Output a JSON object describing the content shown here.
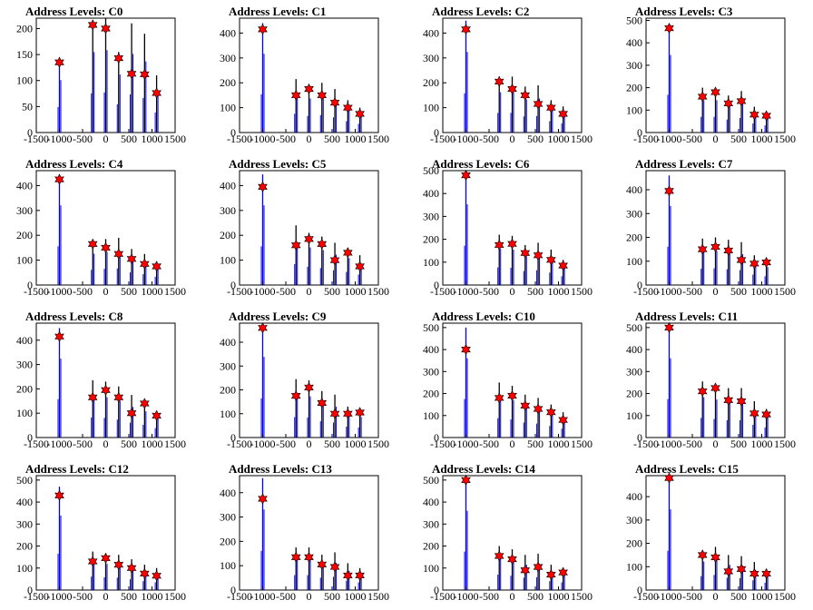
{
  "colors": {
    "background": "#ffffff",
    "frame": "#000000",
    "histogram_blue": "#0000ff",
    "histogram_black": "#000000",
    "marker_fill": "#ff0000",
    "marker_stroke": "#000000"
  },
  "layout": {
    "rows": 4,
    "cols": 4
  },
  "chart_data": [
    {
      "type": "bar",
      "title": "Address Levels: C0",
      "xlim": [
        -1500,
        1500
      ],
      "ylim": [
        0,
        220
      ],
      "xticks": [
        -1500,
        -1000,
        -500,
        0,
        500,
        1000,
        1500
      ],
      "yticks": [
        0,
        50,
        100,
        150,
        200
      ],
      "peak_x": [
        -1000,
        -280,
        0,
        280,
        560,
        840,
        1100
      ],
      "bar_heights": [
        140,
        215,
        220,
        155,
        210,
        190,
        110
      ],
      "marker_values": [
        135,
        207,
        200,
        143,
        113,
        112,
        76
      ]
    },
    {
      "type": "bar",
      "title": "Address Levels: C1",
      "xlim": [
        -1500,
        1500
      ],
      "ylim": [
        0,
        460
      ],
      "xticks": [
        -1500,
        -1000,
        -500,
        0,
        500,
        1000,
        1500
      ],
      "yticks": [
        0,
        100,
        200,
        300,
        400
      ],
      "peak_x": [
        -1000,
        -280,
        0,
        280,
        560,
        840,
        1100
      ],
      "bar_heights": [
        440,
        215,
        190,
        200,
        175,
        130,
        100
      ],
      "marker_values": [
        415,
        150,
        175,
        150,
        120,
        100,
        75
      ]
    },
    {
      "type": "bar",
      "title": "Address Levels: C2",
      "xlim": [
        -1500,
        1500
      ],
      "ylim": [
        0,
        460
      ],
      "xticks": [
        -1500,
        -1000,
        -500,
        0,
        500,
        1000,
        1500
      ],
      "yticks": [
        0,
        100,
        200,
        300,
        400
      ],
      "peak_x": [
        -1000,
        -280,
        0,
        280,
        560,
        840,
        1100
      ],
      "bar_heights": [
        450,
        225,
        225,
        185,
        190,
        130,
        105
      ],
      "marker_values": [
        415,
        205,
        175,
        150,
        115,
        100,
        75
      ]
    },
    {
      "type": "bar",
      "title": "Address Levels: C3",
      "xlim": [
        -1500,
        1500
      ],
      "ylim": [
        0,
        510
      ],
      "xticks": [
        -1500,
        -1000,
        -500,
        0,
        500,
        1000,
        1500
      ],
      "yticks": [
        0,
        100,
        200,
        300,
        400,
        500
      ],
      "peak_x": [
        -1000,
        -280,
        0,
        280,
        560,
        840,
        1100
      ],
      "bar_heights": [
        480,
        200,
        200,
        165,
        185,
        115,
        90
      ],
      "marker_values": [
        465,
        160,
        180,
        130,
        140,
        80,
        75
      ]
    },
    {
      "type": "bar",
      "title": "Address Levels: C4",
      "xlim": [
        -1500,
        1500
      ],
      "ylim": [
        0,
        460
      ],
      "xticks": [
        -1500,
        -1000,
        -500,
        0,
        500,
        1000,
        1500
      ],
      "yticks": [
        0,
        100,
        200,
        300,
        400
      ],
      "peak_x": [
        -1000,
        -280,
        0,
        280,
        560,
        840,
        1100
      ],
      "bar_heights": [
        445,
        175,
        185,
        190,
        145,
        125,
        95
      ],
      "marker_values": [
        425,
        165,
        150,
        125,
        105,
        85,
        75
      ]
    },
    {
      "type": "bar",
      "title": "Address Levels: C5",
      "xlim": [
        -1500,
        1500
      ],
      "ylim": [
        0,
        460
      ],
      "xticks": [
        -1500,
        -1000,
        -500,
        0,
        500,
        1000,
        1500
      ],
      "yticks": [
        0,
        100,
        200,
        300,
        400
      ],
      "peak_x": [
        -1000,
        -280,
        0,
        280,
        560,
        840,
        1100
      ],
      "bar_heights": [
        445,
        240,
        210,
        195,
        170,
        150,
        120
      ],
      "marker_values": [
        395,
        160,
        185,
        165,
        100,
        130,
        75
      ]
    },
    {
      "type": "bar",
      "title": "Address Levels: C6",
      "xlim": [
        -1500,
        1500
      ],
      "ylim": [
        0,
        500
      ],
      "xticks": [
        -1500,
        -1000,
        -500,
        0,
        500,
        1000,
        1500
      ],
      "yticks": [
        0,
        100,
        200,
        300,
        400,
        500
      ],
      "peak_x": [
        -1000,
        -280,
        0,
        280,
        560,
        840,
        1100
      ],
      "bar_heights": [
        490,
        220,
        215,
        175,
        185,
        155,
        110
      ],
      "marker_values": [
        480,
        175,
        180,
        140,
        130,
        110,
        85
      ]
    },
    {
      "type": "bar",
      "title": "Address Levels: C7",
      "xlim": [
        -1500,
        1500
      ],
      "ylim": [
        0,
        480
      ],
      "xticks": [
        -1500,
        -1000,
        -500,
        0,
        500,
        1000,
        1500
      ],
      "yticks": [
        0,
        100,
        200,
        300,
        400
      ],
      "peak_x": [
        -1000,
        -280,
        0,
        280,
        560,
        840,
        1100
      ],
      "bar_heights": [
        460,
        195,
        200,
        190,
        180,
        125,
        105
      ],
      "marker_values": [
        395,
        150,
        160,
        145,
        105,
        90,
        95
      ]
    },
    {
      "type": "bar",
      "title": "Address Levels: C8",
      "xlim": [
        -1500,
        1500
      ],
      "ylim": [
        0,
        470
      ],
      "xticks": [
        -1500,
        -1000,
        -500,
        0,
        500,
        1000,
        1500
      ],
      "yticks": [
        0,
        100,
        200,
        300,
        400
      ],
      "peak_x": [
        -1000,
        -280,
        0,
        280,
        560,
        840,
        1100
      ],
      "bar_heights": [
        450,
        235,
        230,
        210,
        175,
        150,
        110
      ],
      "marker_values": [
        415,
        165,
        195,
        165,
        100,
        140,
        90
      ]
    },
    {
      "type": "bar",
      "title": "Address Levels: C9",
      "xlim": [
        -1500,
        1500
      ],
      "ylim": [
        0,
        480
      ],
      "xticks": [
        -1500,
        -1000,
        -500,
        0,
        500,
        1000,
        1500
      ],
      "yticks": [
        0,
        100,
        200,
        300,
        400
      ],
      "peak_x": [
        -1000,
        -280,
        0,
        280,
        560,
        840,
        1100
      ],
      "bar_heights": [
        470,
        245,
        240,
        195,
        180,
        130,
        120
      ],
      "marker_values": [
        460,
        175,
        210,
        145,
        100,
        100,
        105
      ]
    },
    {
      "type": "bar",
      "title": "Address Levels: C10",
      "xlim": [
        -1500,
        1500
      ],
      "ylim": [
        0,
        520
      ],
      "xticks": [
        -1500,
        -1000,
        -500,
        0,
        500,
        1000,
        1500
      ],
      "yticks": [
        0,
        100,
        200,
        300,
        400,
        500
      ],
      "peak_x": [
        -1000,
        -280,
        0,
        280,
        560,
        840,
        1100
      ],
      "bar_heights": [
        500,
        250,
        235,
        195,
        180,
        150,
        115
      ],
      "marker_values": [
        400,
        180,
        190,
        145,
        130,
        115,
        80
      ]
    },
    {
      "type": "bar",
      "title": "Address Levels: C11",
      "xlim": [
        -1500,
        1500
      ],
      "ylim": [
        0,
        520
      ],
      "xticks": [
        -1500,
        -1000,
        -500,
        0,
        500,
        1000,
        1500
      ],
      "yticks": [
        0,
        100,
        200,
        300,
        400,
        500
      ],
      "peak_x": [
        -1000,
        -280,
        0,
        280,
        560,
        840,
        1100
      ],
      "bar_heights": [
        500,
        255,
        240,
        225,
        225,
        165,
        130
      ],
      "marker_values": [
        500,
        210,
        225,
        170,
        165,
        110,
        105
      ]
    },
    {
      "type": "bar",
      "title": "Address Levels: C12",
      "xlim": [
        -1500,
        1500
      ],
      "ylim": [
        0,
        520
      ],
      "xticks": [
        -1500,
        -1000,
        -500,
        0,
        500,
        1000,
        1500
      ],
      "yticks": [
        0,
        100,
        200,
        300,
        400,
        500
      ],
      "peak_x": [
        -1000,
        -280,
        0,
        280,
        560,
        840,
        1100
      ],
      "bar_heights": [
        470,
        175,
        165,
        160,
        140,
        115,
        100
      ],
      "marker_values": [
        430,
        130,
        145,
        115,
        100,
        75,
        65
      ]
    },
    {
      "type": "bar",
      "title": "Address Levels: C13",
      "xlim": [
        -1500,
        1500
      ],
      "ylim": [
        0,
        470
      ],
      "xticks": [
        -1500,
        -1000,
        -500,
        0,
        500,
        1000,
        1500
      ],
      "yticks": [
        0,
        100,
        200,
        300,
        400
      ],
      "peak_x": [
        -1000,
        -280,
        0,
        280,
        560,
        840,
        1100
      ],
      "bar_heights": [
        460,
        175,
        175,
        145,
        155,
        110,
        90
      ],
      "marker_values": [
        375,
        135,
        135,
        105,
        95,
        60,
        60
      ]
    },
    {
      "type": "bar",
      "title": "Address Levels: C14",
      "xlim": [
        -1500,
        1500
      ],
      "ylim": [
        0,
        520
      ],
      "xticks": [
        -1500,
        -1000,
        -500,
        0,
        500,
        1000,
        1500
      ],
      "yticks": [
        0,
        100,
        200,
        300,
        400,
        500
      ],
      "peak_x": [
        -1000,
        -280,
        0,
        280,
        560,
        840,
        1100
      ],
      "bar_heights": [
        500,
        200,
        185,
        160,
        165,
        115,
        100
      ],
      "marker_values": [
        500,
        155,
        140,
        90,
        105,
        70,
        80
      ]
    },
    {
      "type": "bar",
      "title": "Address Levels: C15",
      "xlim": [
        -1500,
        1500
      ],
      "ylim": [
        0,
        490
      ],
      "xticks": [
        -1500,
        -1000,
        -500,
        0,
        500,
        1000,
        1500
      ],
      "yticks": [
        0,
        100,
        200,
        300,
        400
      ],
      "peak_x": [
        -1000,
        -280,
        0,
        280,
        560,
        840,
        1100
      ],
      "bar_heights": [
        480,
        170,
        185,
        150,
        145,
        120,
        90
      ],
      "marker_values": [
        480,
        150,
        140,
        80,
        90,
        70,
        70
      ]
    }
  ]
}
